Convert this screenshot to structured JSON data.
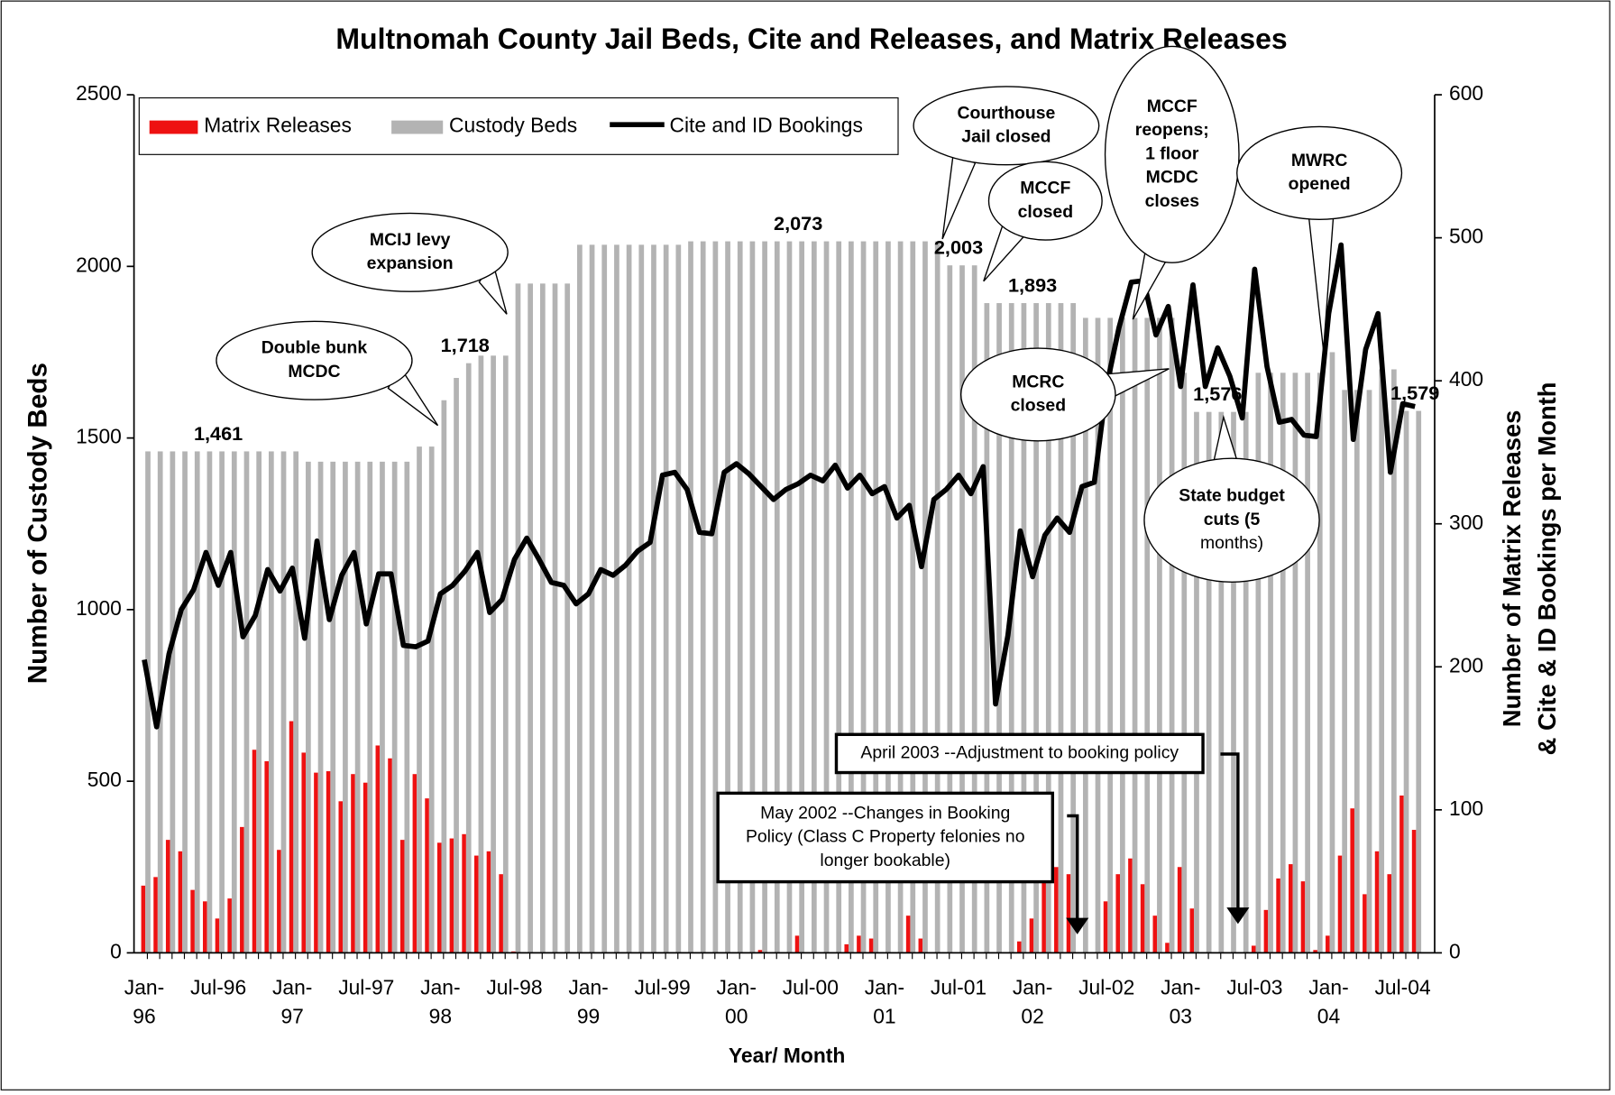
{
  "chart_data": {
    "type": "bar",
    "title": "Multnomah County Jail Beds, Cite and Releases, and Matrix Releases",
    "xlabel": "Year/ Month",
    "ylabel": "Number of Custody Beds",
    "y2label": [
      "Number of Matrix Releases",
      "& Cite & ID Bookings per Month"
    ],
    "categories": [
      "Jan-96",
      null,
      null,
      null,
      null,
      null,
      "Jul-96",
      null,
      null,
      null,
      null,
      null,
      "Jan-97",
      null,
      null,
      null,
      null,
      null,
      "Jul-97",
      null,
      null,
      null,
      null,
      null,
      "Jan-98",
      null,
      null,
      null,
      null,
      null,
      "Jul-98",
      null,
      null,
      null,
      null,
      null,
      "Jan-99",
      null,
      null,
      null,
      null,
      null,
      "Jul-99",
      null,
      null,
      null,
      null,
      null,
      "Jan-00",
      null,
      null,
      null,
      null,
      null,
      "Jul-00",
      null,
      null,
      null,
      null,
      null,
      "Jan-01",
      null,
      null,
      null,
      null,
      null,
      "Jul-01",
      null,
      null,
      null,
      null,
      null,
      "Jan-02",
      null,
      null,
      null,
      null,
      null,
      "Jul-02",
      null,
      null,
      null,
      null,
      null,
      "Jan-03",
      null,
      null,
      null,
      null,
      null,
      "Jul-03",
      null,
      null,
      null,
      null,
      null,
      "Jan-04",
      null,
      null,
      null,
      null,
      null,
      "Jul-04",
      null
    ],
    "series": [
      {
        "name": "Matrix Releases",
        "type": "bar",
        "color": "#ee1111",
        "axis": "y2",
        "values": [
          47,
          53,
          79,
          71,
          44,
          36,
          24,
          38,
          88,
          142,
          134,
          72,
          162,
          140,
          126,
          127,
          106,
          125,
          119,
          145,
          136,
          79,
          125,
          108,
          77,
          80,
          83,
          68,
          71,
          55,
          1,
          0,
          0,
          0,
          0,
          0,
          0,
          0,
          0,
          0,
          0,
          0,
          0,
          0,
          0,
          0,
          0,
          0,
          0,
          0,
          2,
          0,
          0,
          12,
          0,
          0,
          0,
          6,
          12,
          10,
          0,
          0,
          26,
          10,
          0,
          0,
          0,
          0,
          0,
          0,
          0,
          8,
          24,
          50,
          60,
          55,
          0,
          0,
          36,
          55,
          66,
          48,
          26,
          7,
          60,
          31,
          0,
          0,
          0,
          0,
          5,
          30,
          52,
          62,
          50,
          2,
          12,
          68,
          101,
          41,
          71,
          55,
          110,
          86
        ]
      },
      {
        "name": "Custody Beds",
        "type": "bar",
        "color": "#b3b3b3",
        "values": [
          1461,
          1461,
          1461,
          1461,
          1461,
          1461,
          1461,
          1461,
          1461,
          1461,
          1461,
          1461,
          1461,
          1431,
          1431,
          1431,
          1431,
          1431,
          1431,
          1431,
          1431,
          1431,
          1475,
          1475,
          1610,
          1675,
          1718,
          1740,
          1740,
          1740,
          1950,
          1950,
          1950,
          1950,
          1950,
          2063,
          2063,
          2063,
          2063,
          2063,
          2063,
          2063,
          2063,
          2063,
          2073,
          2073,
          2073,
          2073,
          2073,
          2073,
          2073,
          2073,
          2073,
          2073,
          2073,
          2073,
          2073,
          2073,
          2073,
          2073,
          2073,
          2073,
          2073,
          2073,
          2073,
          2003,
          2003,
          2003,
          1893,
          1893,
          1893,
          1893,
          1893,
          1893,
          1893,
          1893,
          1850,
          1850,
          1850,
          1850,
          1850,
          1850,
          1850,
          1850,
          1690,
          1576,
          1576,
          1576,
          1576,
          1576,
          1690,
          1690,
          1690,
          1690,
          1690,
          1690,
          1750,
          1640,
          1640,
          1640,
          1700,
          1700,
          1579,
          1579
        ],
        "value_labels": [
          null,
          null,
          null,
          null,
          null,
          null,
          "1,461",
          null,
          null,
          null,
          null,
          null,
          null,
          null,
          null,
          null,
          null,
          null,
          null,
          null,
          null,
          null,
          null,
          null,
          null,
          null,
          "1,718",
          null,
          null,
          null,
          null,
          null,
          null,
          null,
          null,
          null,
          null,
          null,
          null,
          null,
          null,
          null,
          null,
          null,
          null,
          null,
          null,
          null,
          null,
          null,
          null,
          null,
          null,
          "2,073",
          null,
          null,
          null,
          null,
          null,
          null,
          null,
          null,
          null,
          null,
          null,
          null,
          "2,003",
          null,
          null,
          null,
          null,
          null,
          "1,893",
          null,
          null,
          null,
          null,
          null,
          null,
          null,
          null,
          null,
          null,
          null,
          null,
          null,
          null,
          "1,576",
          null,
          null,
          null,
          null,
          null,
          null,
          null,
          null,
          null,
          null,
          null,
          null,
          null,
          null,
          null,
          "1,579"
        ]
      },
      {
        "name": "Cite and ID Bookings",
        "type": "line",
        "color": "#000000",
        "axis": "y2",
        "values": [
          205,
          158,
          209,
          240,
          254,
          280,
          257,
          280,
          221,
          236,
          268,
          253,
          269,
          220,
          288,
          233,
          264,
          280,
          230,
          265,
          265,
          215,
          214,
          218,
          251,
          257,
          267,
          280,
          238,
          247,
          275,
          290,
          275,
          259,
          257,
          244,
          251,
          268,
          264,
          271,
          281,
          287,
          334,
          336,
          324,
          294,
          293,
          336,
          342,
          335,
          326,
          317,
          324,
          328,
          334,
          330,
          341,
          325,
          334,
          321,
          326,
          304,
          313,
          270,
          317,
          324,
          334,
          321,
          340,
          174,
          222,
          295,
          263,
          292,
          304,
          294,
          326,
          329,
          396,
          437,
          469,
          470,
          432,
          452,
          396,
          467,
          396,
          423,
          403,
          374,
          478,
          410,
          371,
          373,
          362,
          361,
          447,
          495,
          359,
          422,
          447,
          336,
          384,
          382
        ]
      }
    ],
    "ylim": [
      0,
      2500
    ],
    "yticks": [
      0,
      500,
      1000,
      1500,
      2000,
      2500
    ],
    "y2lim": [
      0,
      600
    ],
    "y2ticks": [
      0,
      100,
      200,
      300,
      400,
      500,
      600
    ],
    "legend": "top-left",
    "annotations": [
      [
        "Double bunk",
        "MCDC"
      ],
      [
        "MCIJ levy",
        "expansion"
      ],
      [
        "Courthouse",
        "Jail closed"
      ],
      [
        "MCCF",
        "closed"
      ],
      [
        "MCCF",
        "reopens;",
        "1 floor",
        "MCDC",
        "closes"
      ],
      [
        "MWRC",
        "opened"
      ],
      [
        "MCRC",
        "closed"
      ],
      [
        "State budget",
        "cuts (5",
        "months)"
      ]
    ],
    "boxes": [
      [
        "April 2003 --Adjustment to booking policy"
      ],
      [
        "May 2002 --Changes in Booking",
        "Policy  (Class C Property felonies no",
        "longer bookable)"
      ]
    ]
  }
}
